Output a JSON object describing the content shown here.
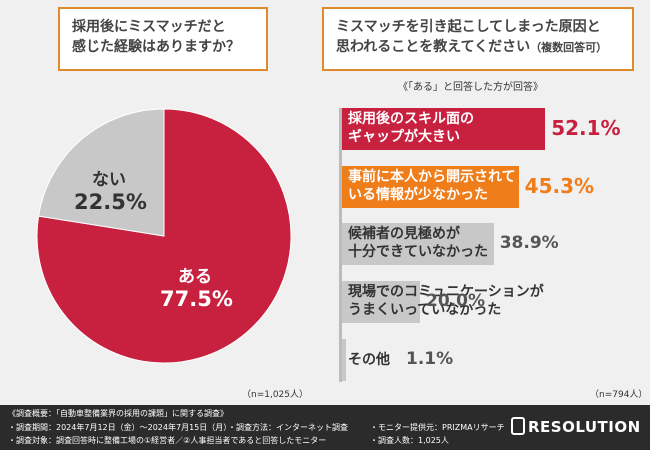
{
  "question_left": {
    "line1": "採用後にミスマッチだと",
    "line2": "感じた経験はありますか？"
  },
  "question_right": {
    "line1": "ミスマッチを引き起こしてしまった原因と",
    "line2": "思われることを教えてください",
    "note": "（複数回答可）"
  },
  "sub_label": "《「ある」と回答した方が回答》",
  "n_left": "（n=1,025人）",
  "n_right": "（n=794人）",
  "colors": {
    "red": "#c8203f",
    "orange": "#ef7d1a",
    "gray": "#c8c8c8"
  },
  "chart_data": [
    {
      "type": "pie",
      "title": "採用後にミスマッチだと感じた経験はありますか？",
      "slices": [
        {
          "label": "ある",
          "value": 77.5,
          "display": "77.5%"
        },
        {
          "label": "ない",
          "value": 22.5,
          "display": "22.5%"
        }
      ]
    },
    {
      "type": "bar",
      "orientation": "horizontal",
      "title": "ミスマッチを引き起こしてしまった原因と思われることを教えてください（複数回答可）",
      "xlim": [
        0,
        100
      ],
      "bars": [
        {
          "line1": "採用後のスキル面の",
          "line2": "ギャップが大きい",
          "value": 52.1,
          "display": "52.1%",
          "color": "red"
        },
        {
          "line1": "事前に本人から開示されて",
          "line2": "いる情報が少なかった",
          "value": 45.3,
          "display": "45.3%",
          "color": "orange"
        },
        {
          "line1": "候補者の見極めが",
          "line2": "十分できていなかった",
          "value": 38.9,
          "display": "38.9%",
          "color": "gray"
        },
        {
          "line1": "現場でのコミュニケーションが",
          "line2": "うまくいっていなかった",
          "value": 20.0,
          "display": "20.0%",
          "color": "gray"
        },
        {
          "line1": "その他",
          "line2": "",
          "value": 1.1,
          "display": "1.1%",
          "color": "gray"
        }
      ]
    }
  ],
  "footer": {
    "overview": "《調査概要：「自動車整備業界の採用の課題」に関する調査》",
    "period": "・調査期間：2024年7月12日（金）～2024年7月15日（月）",
    "method": "・調査方法：インターネット調査",
    "provider": "・モニター提供元：PRIZMAリサーチ",
    "target": "・調査対象：調査回答時に整備工場の①経営者／②人事担当者であると回答したモニター",
    "count": "・調査人数：1,025人",
    "logo": "RESOLUTION"
  }
}
